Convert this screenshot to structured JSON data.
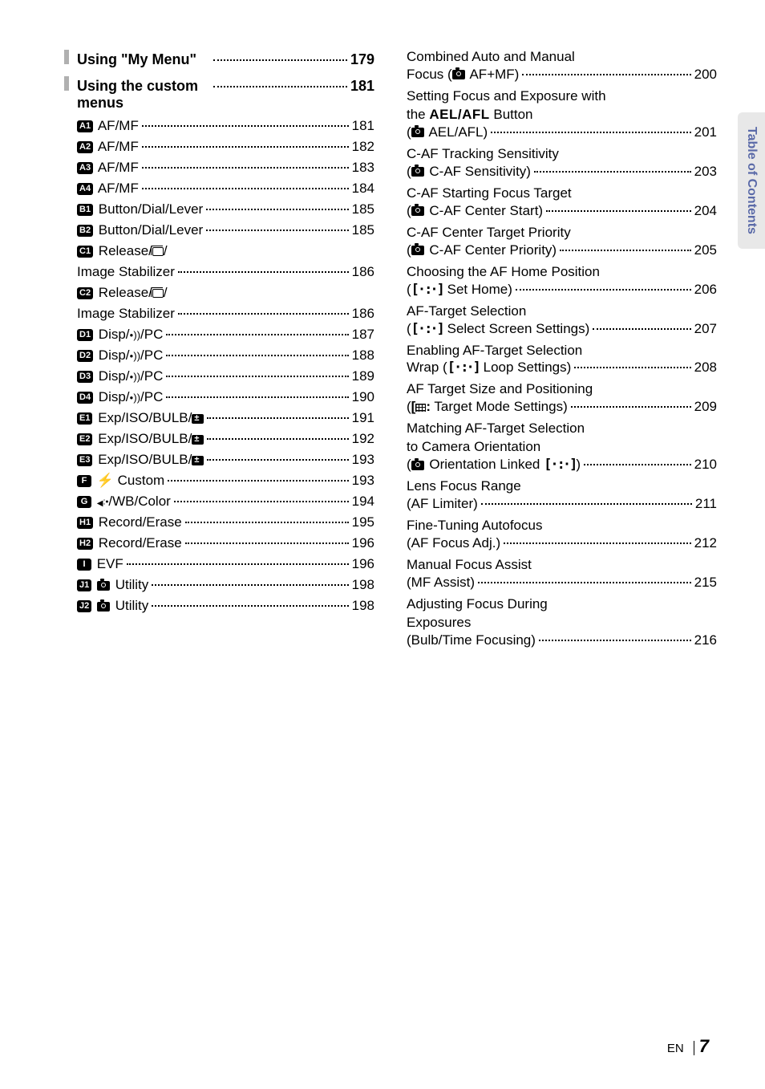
{
  "sideTab": "Table of Contents",
  "footer": {
    "lang": "EN",
    "page": "7"
  },
  "left": {
    "sections": [
      {
        "title": "Using \"My Menu\"",
        "page": "179"
      },
      {
        "title": "Using the custom menus",
        "page": "181"
      }
    ],
    "items": [
      {
        "badge": "A1",
        "label": "AF/MF",
        "page": "181"
      },
      {
        "badge": "A2",
        "label": "AF/MF",
        "page": "182"
      },
      {
        "badge": "A3",
        "label": "AF/MF",
        "page": "183"
      },
      {
        "badge": "A4",
        "label": "AF/MF",
        "page": "184"
      },
      {
        "badge": "B1",
        "label": "Button/Dial/Lever",
        "page": "185"
      },
      {
        "badge": "B2",
        "label": "Button/Dial/Lever",
        "page": "185"
      },
      {
        "badge": "C1",
        "type": "release",
        "label1": "Release/",
        "label2": "Image Stabilizer",
        "page": "186"
      },
      {
        "badge": "C2",
        "type": "release",
        "label1": "Release/",
        "label2": "Image Stabilizer",
        "page": "186"
      },
      {
        "badge": "D1",
        "type": "disp",
        "label": "Disp/",
        "suffix": "/PC",
        "page": "187"
      },
      {
        "badge": "D2",
        "type": "disp",
        "label": "Disp/",
        "suffix": "/PC",
        "page": "188"
      },
      {
        "badge": "D3",
        "type": "disp",
        "label": "Disp/",
        "suffix": "/PC",
        "page": "189"
      },
      {
        "badge": "D4",
        "type": "disp",
        "label": "Disp/",
        "suffix": "/PC",
        "page": "190"
      },
      {
        "badge": "E1",
        "type": "exp",
        "label": "Exp/ISO/BULB/",
        "page": "191"
      },
      {
        "badge": "E2",
        "type": "exp",
        "label": "Exp/ISO/BULB/",
        "page": "192"
      },
      {
        "badge": "E3",
        "type": "exp",
        "label": "Exp/ISO/BULB/",
        "page": "193"
      },
      {
        "badge": "F",
        "type": "flash",
        "label": "Custom",
        "page": "193"
      },
      {
        "badge": "G",
        "type": "wb",
        "label": "/WB/Color",
        "page": "194"
      },
      {
        "badge": "H1",
        "label": "Record/Erase",
        "page": "195"
      },
      {
        "badge": "H2",
        "label": "Record/Erase",
        "page": "196"
      },
      {
        "badge": "I",
        "label": "EVF",
        "page": "196"
      },
      {
        "badge": "J1",
        "type": "cam",
        "label": "Utility",
        "page": "198"
      },
      {
        "badge": "J2",
        "type": "cam",
        "label": "Utility",
        "page": "198"
      }
    ]
  },
  "right": [
    {
      "lines": [
        "Combined Auto and Manual"
      ],
      "last": {
        "pre": "Focus (",
        "icon": "cam",
        "post": " AF+MF)"
      },
      "page": "200"
    },
    {
      "lines": [
        "Setting Focus and Exposure with",
        "the <AELAFL> Button"
      ],
      "last": {
        "pre": "(",
        "icon": "cam",
        "post": " AEL/AFL)"
      },
      "page": "201"
    },
    {
      "lines": [
        "C-AF Tracking Sensitivity"
      ],
      "last": {
        "pre": "(",
        "icon": "cam",
        "post": " C-AF Sensitivity)"
      },
      "page": "203"
    },
    {
      "lines": [
        "C-AF Starting Focus Target"
      ],
      "last": {
        "pre": "(",
        "icon": "cam",
        "post": " C-AF Center Start)"
      },
      "page": "204"
    },
    {
      "lines": [
        "C-AF Center Target Priority"
      ],
      "last": {
        "pre": "(",
        "icon": "cam",
        "post": " C-AF Center Priority)"
      },
      "page": "205"
    },
    {
      "lines": [
        "Choosing the AF Home Position"
      ],
      "last": {
        "pre": "(",
        "icon": "target",
        "post": " Set Home)"
      },
      "page": "206"
    },
    {
      "lines": [
        "AF-Target Selection"
      ],
      "last": {
        "pre": "(",
        "icon": "target",
        "post": " Select Screen Settings)"
      },
      "page": "207"
    },
    {
      "lines": [
        "Enabling AF-Target Selection"
      ],
      "last": {
        "pre": "Wrap (",
        "icon": "target",
        "post": " Loop Settings)"
      },
      "page": "208"
    },
    {
      "lines": [
        "AF Target Size and Positioning"
      ],
      "last": {
        "pre": "(",
        "icon": "target2",
        "post": " Target Mode Settings)"
      },
      "page": "209"
    },
    {
      "lines": [
        "Matching AF-Target Selection",
        "to Camera Orientation"
      ],
      "last": {
        "pre": "(",
        "icon": "cam",
        "post": " Orientation Linked ",
        "icon2": "target",
        "post2": ")"
      },
      "page": "210"
    },
    {
      "lines": [
        "Lens Focus Range"
      ],
      "last": {
        "pre": "(AF Limiter)",
        "post": ""
      },
      "page": "211"
    },
    {
      "lines": [
        "Fine-Tuning Autofocus"
      ],
      "last": {
        "pre": "(AF Focus Adj.)",
        "post": ""
      },
      "page": "212"
    },
    {
      "lines": [
        "Manual Focus Assist"
      ],
      "last": {
        "pre": "(MF Assist)",
        "post": ""
      },
      "page": "215"
    },
    {
      "lines": [
        "Adjusting Focus During",
        "Exposures"
      ],
      "last": {
        "pre": "(Bulb/Time Focusing)",
        "post": ""
      },
      "page": "216"
    }
  ]
}
